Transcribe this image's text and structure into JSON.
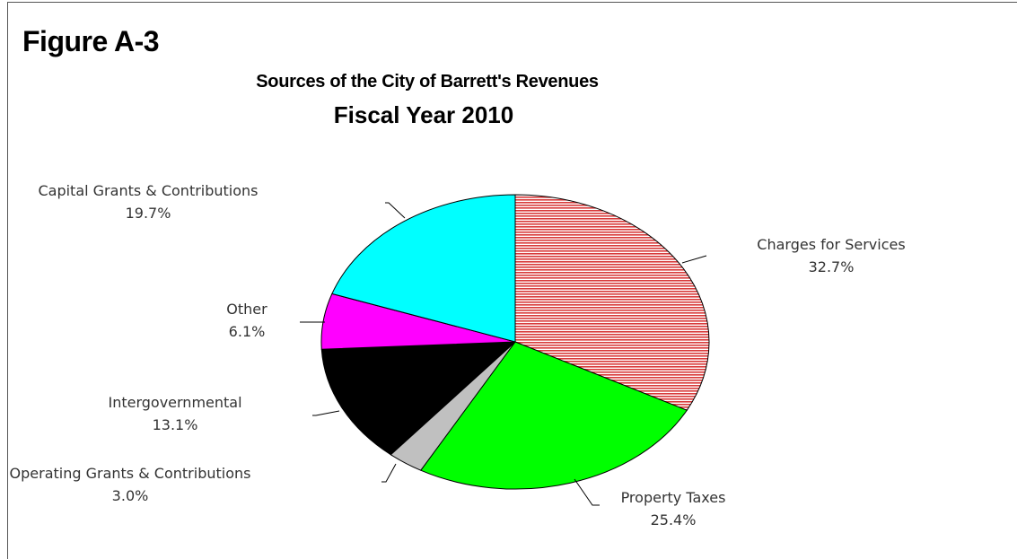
{
  "figure_label": "Figure A-3",
  "chart_data": {
    "type": "pie",
    "title": "Sources of the City of Barrett's Revenues",
    "subtitle": "Fiscal Year 2010",
    "slices": [
      {
        "label": "Charges for Services",
        "value": 32.7,
        "value_label": "32.7%",
        "color": "#e46a6a",
        "pattern": "horizontal-stripes"
      },
      {
        "label": "Property Taxes",
        "value": 25.4,
        "value_label": "25.4%",
        "color": "#00ff00"
      },
      {
        "label": "Operating Grants & Contributions",
        "value": 3.0,
        "value_label": "3.0%",
        "color": "#c0c0c0"
      },
      {
        "label": "Intergovernmental",
        "value": 13.1,
        "value_label": "13.1%",
        "color": "#000000"
      },
      {
        "label": "Other",
        "value": 6.1,
        "value_label": "6.1%",
        "color": "#ff00ff"
      },
      {
        "label": "Capital Grants & Contributions",
        "value": 19.7,
        "value_label": "19.7%",
        "color": "#00ffff"
      }
    ]
  }
}
